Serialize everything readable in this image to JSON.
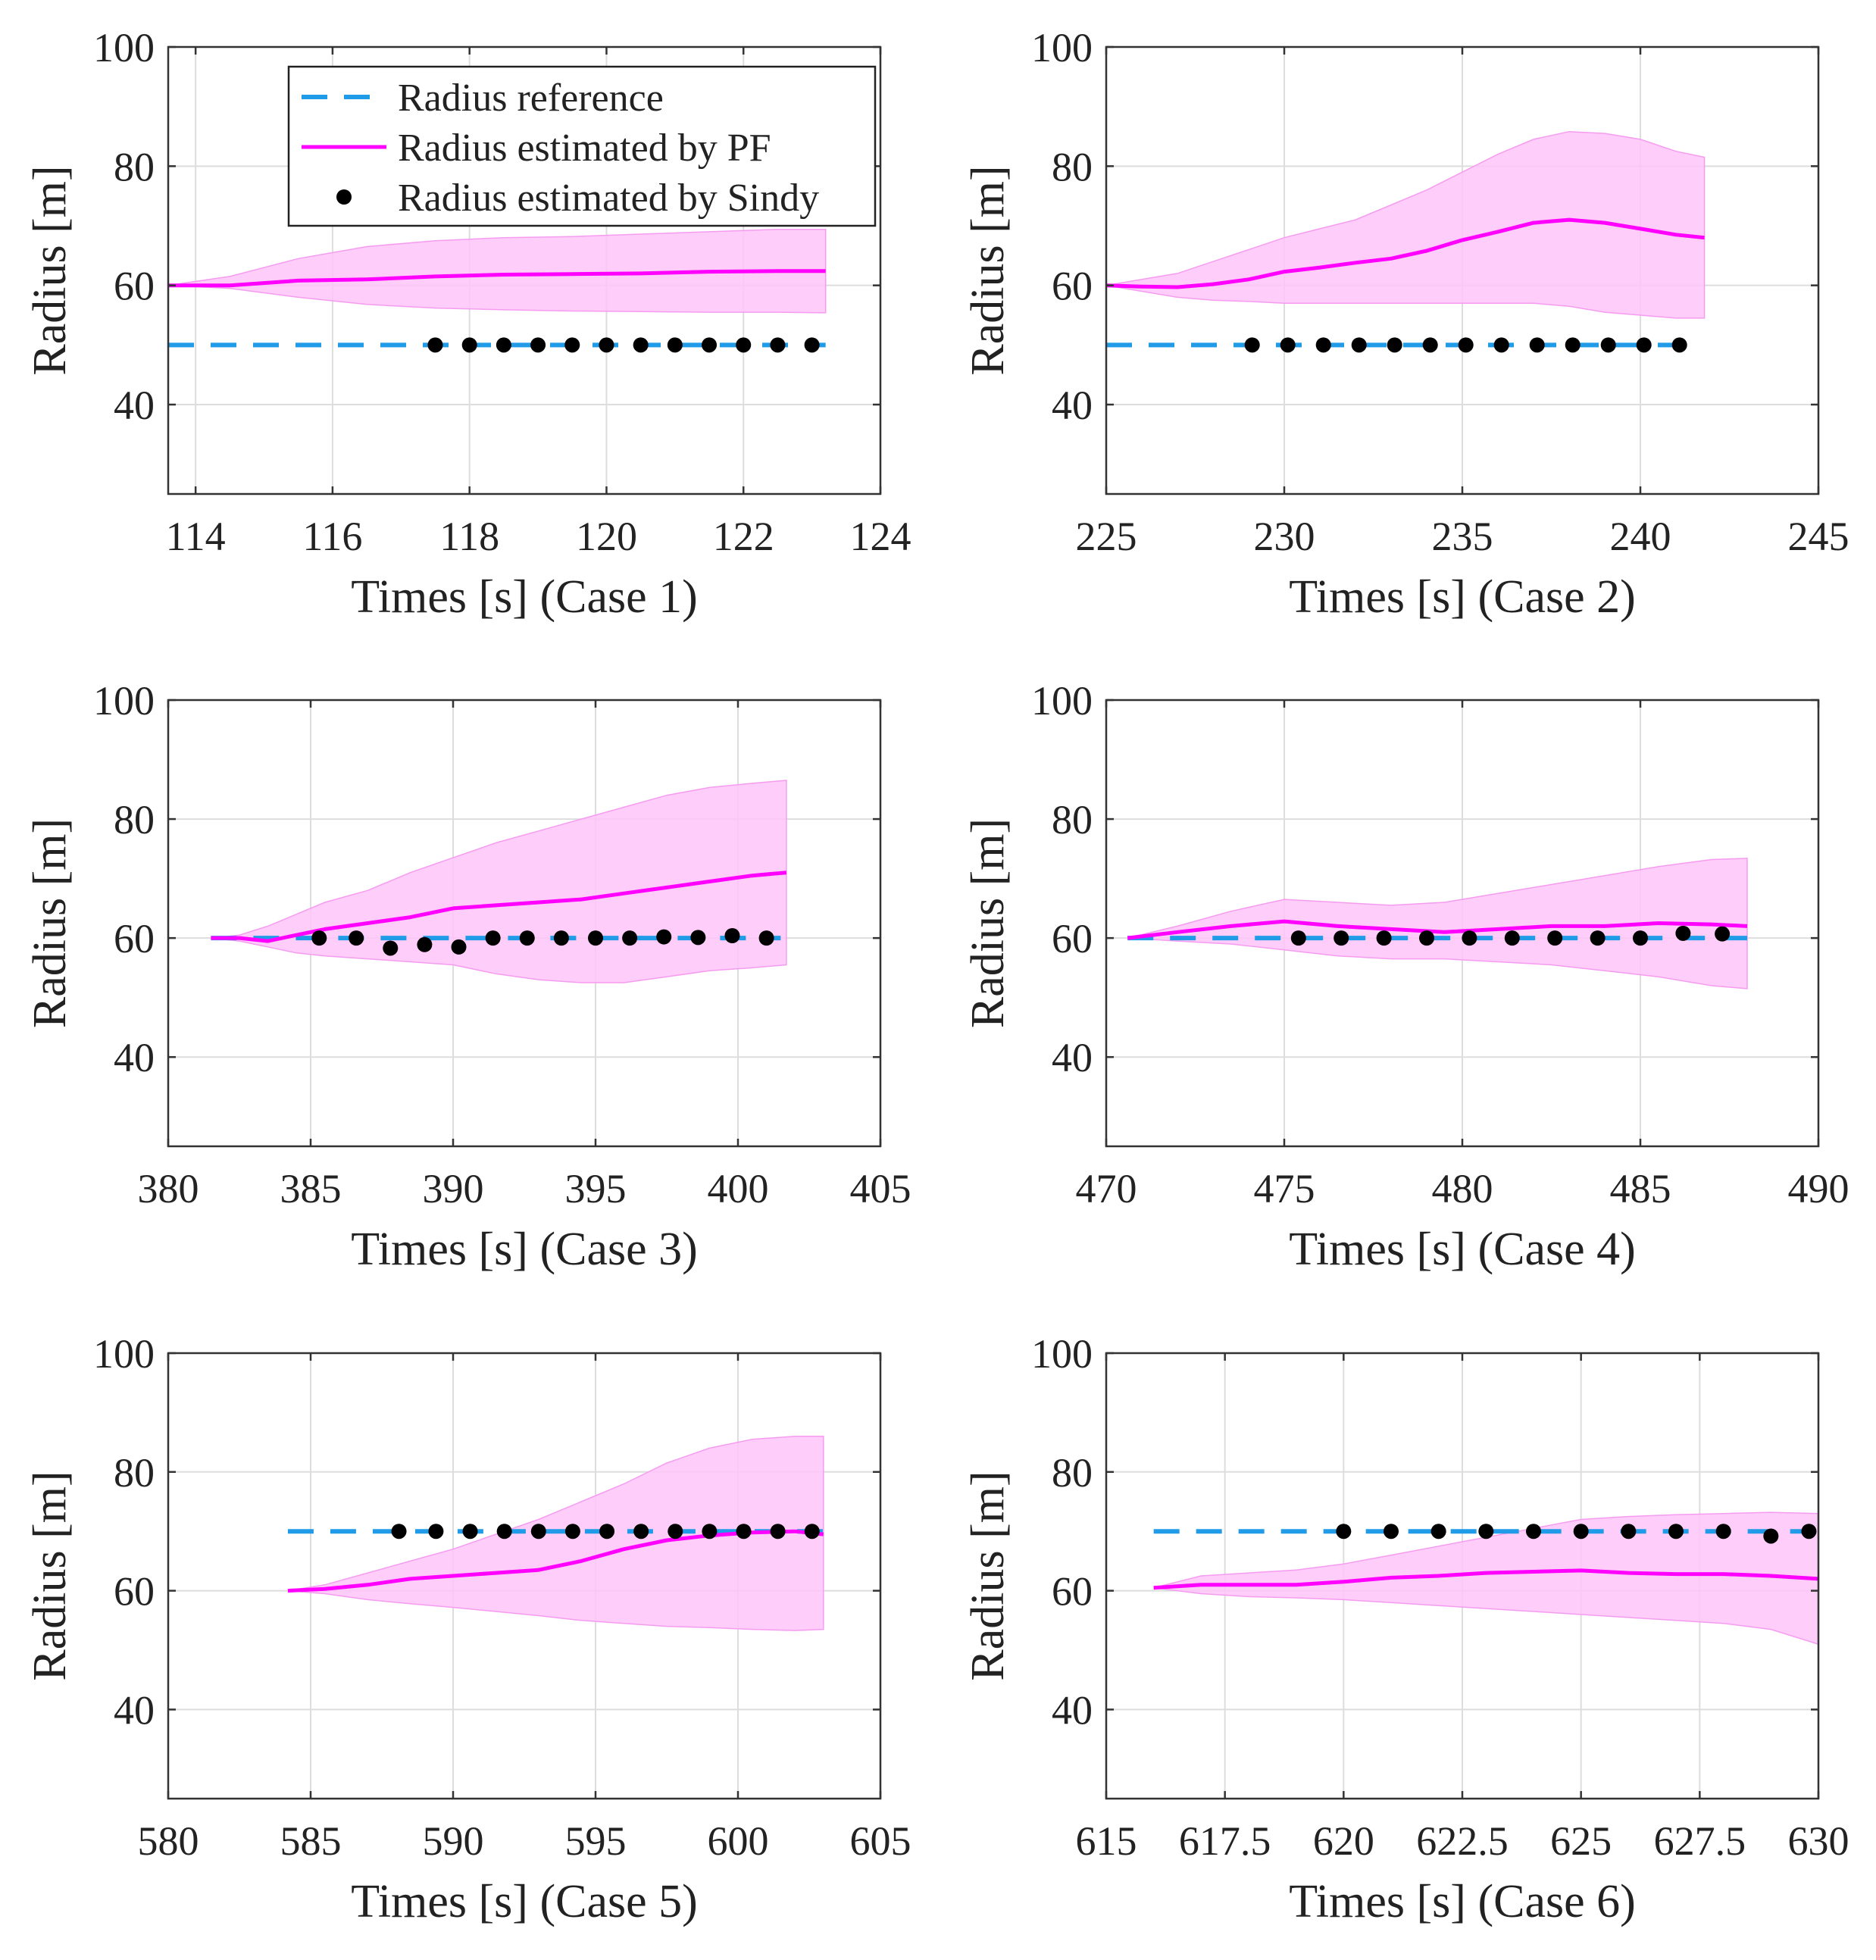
{
  "colors": {
    "reference": "#1f9be8",
    "pf": "#ff00ff",
    "pf_band": "#ffc4f8",
    "sindy": "#000000",
    "grid": "#dddddd",
    "axes": "#333333"
  },
  "legend": {
    "placement": "top-right of first panel",
    "entries": [
      {
        "label": "Radius reference",
        "style": "dashed",
        "color": "#1f9be8"
      },
      {
        "label": "Radius estimated by PF",
        "style": "solid",
        "color": "#ff00ff"
      },
      {
        "label": "Radius estimated by Sindy",
        "style": "dot",
        "color": "#000000"
      }
    ]
  },
  "chart_data": [
    {
      "type": "line",
      "title": "",
      "xlabel": "Times [s]  (Case 1)",
      "ylabel": "Radius [m]",
      "xlim": [
        113.6,
        124
      ],
      "ylim": [
        25,
        100
      ],
      "xticks": [
        114,
        116,
        118,
        120,
        122,
        124
      ],
      "xtick_labels": [
        "114",
        "116",
        "118",
        "120",
        "122",
        "124"
      ],
      "yticks": [
        40,
        60,
        80,
        100
      ],
      "ytick_labels": [
        "40",
        "60",
        "80",
        "100"
      ],
      "grid": true,
      "reference": {
        "x_start": 113.6,
        "x_end": 123.2,
        "value": 50
      },
      "pf_mean": {
        "x": [
          113.6,
          114.5,
          115.5,
          116.5,
          117.5,
          118.5,
          119.5,
          120.5,
          121.5,
          122.5,
          123.2
        ],
        "y": [
          60,
          60,
          60.8,
          61,
          61.5,
          61.8,
          61.9,
          62,
          62.3,
          62.4,
          62.4
        ]
      },
      "pf_upper": {
        "x": [
          113.6,
          114.5,
          115.5,
          116.5,
          117.5,
          118.5,
          119.5,
          120.5,
          121.5,
          122.5,
          123.2
        ],
        "y": [
          60,
          61.5,
          64.5,
          66.5,
          67.5,
          68,
          68.2,
          68.6,
          69,
          69.4,
          69.4
        ]
      },
      "pf_lower": {
        "x": [
          113.6,
          114.5,
          115.5,
          116.5,
          117.5,
          118.5,
          119.5,
          120.5,
          121.5,
          122.5,
          123.2
        ],
        "y": [
          60,
          59.5,
          58,
          56.8,
          56.2,
          55.9,
          55.7,
          55.6,
          55.5,
          55.5,
          55.4
        ]
      },
      "sindy": {
        "x": [
          117.5,
          118.0,
          118.5,
          119.0,
          119.5,
          120.0,
          120.5,
          121.0,
          121.5,
          122.0,
          122.5,
          123.0
        ],
        "y": [
          50,
          50,
          50,
          50,
          50,
          50,
          50,
          50,
          50,
          50,
          50,
          50
        ]
      }
    },
    {
      "type": "line",
      "title": "",
      "xlabel": "Times [s]  (Case 2)",
      "ylabel": "Radius [m]",
      "xlim": [
        225,
        245
      ],
      "ylim": [
        25,
        100
      ],
      "xticks": [
        225,
        230,
        235,
        240,
        245
      ],
      "xtick_labels": [
        "225",
        "230",
        "235",
        "240",
        "245"
      ],
      "yticks": [
        40,
        60,
        80,
        100
      ],
      "ytick_labels": [
        "40",
        "60",
        "80",
        "100"
      ],
      "grid": true,
      "reference": {
        "x_start": 225,
        "x_end": 241.5,
        "value": 50
      },
      "pf_mean": {
        "x": [
          225,
          226,
          227,
          228,
          229,
          230,
          231,
          232,
          233,
          234,
          235,
          236,
          237,
          238,
          239,
          240,
          241,
          241.8
        ],
        "y": [
          60,
          59.8,
          59.7,
          60.2,
          61,
          62.3,
          63,
          63.8,
          64.5,
          65.8,
          67.6,
          69,
          70.5,
          71,
          70.5,
          69.5,
          68.5,
          68
        ]
      },
      "pf_upper": {
        "x": [
          225,
          226,
          227,
          228,
          229,
          230,
          231,
          232,
          233,
          234,
          235,
          236,
          237,
          238,
          239,
          240,
          241,
          241.8
        ],
        "y": [
          60,
          61,
          62,
          64,
          66,
          68,
          69.5,
          71,
          73.5,
          76,
          79,
          82,
          84.5,
          85.8,
          85.5,
          84.5,
          82.5,
          81.5
        ]
      },
      "pf_lower": {
        "x": [
          225,
          226,
          227,
          228,
          229,
          230,
          231,
          232,
          233,
          234,
          235,
          236,
          237,
          238,
          239,
          240,
          241,
          241.8
        ],
        "y": [
          60,
          59,
          58,
          57.5,
          57.3,
          57,
          57,
          57,
          57,
          57,
          57,
          57,
          57,
          56.5,
          55.5,
          55,
          54.5,
          54.5
        ]
      },
      "sindy": {
        "x": [
          229.1,
          230.1,
          231.1,
          232.1,
          233.1,
          234.1,
          235.1,
          236.1,
          237.1,
          238.1,
          239.1,
          240.1,
          241.1
        ],
        "y": [
          50,
          50,
          50,
          50,
          50,
          50,
          50,
          50,
          50,
          50,
          50,
          50,
          50
        ]
      }
    },
    {
      "type": "line",
      "title": "",
      "xlabel": "Times [s]  (Case 3)",
      "ylabel": "Radius [m]",
      "xlim": [
        380,
        405
      ],
      "ylim": [
        25,
        100
      ],
      "xticks": [
        380,
        385,
        390,
        395,
        400,
        405
      ],
      "xtick_labels": [
        "380",
        "385",
        "390",
        "395",
        "400",
        "405"
      ],
      "yticks": [
        40,
        60,
        80,
        100
      ],
      "ytick_labels": [
        "40",
        "60",
        "80",
        "100"
      ],
      "grid": true,
      "reference": {
        "x_start": 381.5,
        "x_end": 401.5,
        "value": 60
      },
      "pf_mean": {
        "x": [
          381.5,
          382.5,
          383.5,
          384.5,
          385.5,
          387,
          388.5,
          390,
          391.5,
          393,
          394.5,
          396,
          397.5,
          399,
          400.5,
          401.7
        ],
        "y": [
          60,
          60,
          59.5,
          60.5,
          61.5,
          62.5,
          63.5,
          65,
          65.5,
          66,
          66.5,
          67.5,
          68.5,
          69.5,
          70.5,
          71
        ]
      },
      "pf_upper": {
        "x": [
          381.5,
          382.5,
          383.5,
          384.5,
          385.5,
          387,
          388.5,
          390,
          391.5,
          393,
          394.5,
          396,
          397.5,
          399,
          400.5,
          401.7
        ],
        "y": [
          60,
          60.5,
          62,
          64,
          66,
          68,
          71,
          73.5,
          76,
          78,
          80,
          82,
          84,
          85.3,
          86,
          86.5
        ]
      },
      "pf_lower": {
        "x": [
          381.5,
          382.5,
          383.5,
          384.5,
          385.5,
          387,
          388.5,
          390,
          391.5,
          393,
          394.5,
          396,
          397.5,
          399,
          400.5,
          401.7
        ],
        "y": [
          60,
          59.5,
          58.5,
          57.5,
          57,
          56.5,
          56,
          55.5,
          54,
          53,
          52.5,
          52.5,
          53.5,
          54.5,
          55,
          55.5
        ]
      },
      "sindy": {
        "x": [
          385.3,
          386.6,
          387.8,
          389.0,
          390.2,
          391.4,
          392.6,
          393.8,
          395.0,
          396.2,
          397.4,
          398.6,
          399.8,
          401.0
        ],
        "y": [
          60,
          60,
          58.3,
          58.9,
          58.5,
          60,
          60,
          60,
          60,
          60,
          60.2,
          60.1,
          60.4,
          60
        ]
      }
    },
    {
      "type": "line",
      "title": "",
      "xlabel": "Times [s]  (Case 4)",
      "ylabel": "Radius [m]",
      "xlim": [
        470,
        490
      ],
      "ylim": [
        25,
        100
      ],
      "xticks": [
        470,
        475,
        480,
        485,
        490
      ],
      "xtick_labels": [
        "470",
        "475",
        "480",
        "485",
        "490"
      ],
      "yticks": [
        40,
        60,
        80,
        100
      ],
      "ytick_labels": [
        "40",
        "60",
        "80",
        "100"
      ],
      "grid": true,
      "reference": {
        "x_start": 470.6,
        "x_end": 488,
        "value": 60
      },
      "pf_mean": {
        "x": [
          470.6,
          472,
          473.5,
          475,
          476.5,
          478,
          479.5,
          481,
          482.5,
          484,
          485.5,
          487,
          488
        ],
        "y": [
          60,
          61,
          62,
          62.8,
          62,
          61.5,
          61,
          61.5,
          62,
          62,
          62.5,
          62.3,
          62
        ]
      },
      "pf_upper": {
        "x": [
          470.6,
          472,
          473.5,
          475,
          476.5,
          478,
          479.5,
          481,
          482.5,
          484,
          485.5,
          487,
          488
        ],
        "y": [
          60,
          62,
          64.5,
          66.5,
          66,
          65.5,
          66,
          67.5,
          69,
          70.5,
          72,
          73.2,
          73.4
        ]
      },
      "pf_lower": {
        "x": [
          470.6,
          472,
          473.5,
          475,
          476.5,
          478,
          479.5,
          481,
          482.5,
          484,
          485.5,
          487,
          488
        ],
        "y": [
          60,
          59.5,
          59,
          58,
          57,
          56.5,
          56.5,
          56,
          55.5,
          54.5,
          53.5,
          52,
          51.5
        ]
      },
      "sindy": {
        "x": [
          475.4,
          476.6,
          477.8,
          479.0,
          480.2,
          481.4,
          482.6,
          483.8,
          485.0,
          486.2,
          487.3
        ],
        "y": [
          60,
          60,
          60,
          60,
          60,
          60,
          60,
          60,
          60,
          60.8,
          60.7
        ]
      }
    },
    {
      "type": "line",
      "title": "",
      "xlabel": "Times [s]  (Case 5)",
      "ylabel": "Radius [m]",
      "xlim": [
        580,
        605
      ],
      "ylim": [
        25,
        100
      ],
      "xticks": [
        580,
        585,
        590,
        595,
        600,
        605
      ],
      "xtick_labels": [
        "580",
        "585",
        "590",
        "595",
        "600",
        "605"
      ],
      "yticks": [
        40,
        60,
        80,
        100
      ],
      "ytick_labels": [
        "40",
        "60",
        "80",
        "100"
      ],
      "grid": true,
      "reference": {
        "x_start": 584.2,
        "x_end": 603,
        "value": 70
      },
      "pf_mean": {
        "x": [
          584.2,
          585.5,
          587,
          588.5,
          590,
          591.5,
          593,
          594.5,
          596,
          597.5,
          599,
          600.5,
          602,
          603
        ],
        "y": [
          60,
          60.3,
          61,
          62,
          62.5,
          63,
          63.5,
          65,
          67,
          68.5,
          69.3,
          69.8,
          70,
          69.5
        ]
      },
      "pf_upper": {
        "x": [
          584.2,
          585.5,
          587,
          588.5,
          590,
          591.5,
          593,
          594.5,
          596,
          597.5,
          599,
          600.5,
          602,
          603
        ],
        "y": [
          60,
          61,
          63,
          65,
          67,
          69.5,
          72,
          75,
          78,
          81.5,
          84,
          85.5,
          86,
          86
        ]
      },
      "pf_lower": {
        "x": [
          584.2,
          585.5,
          587,
          588.5,
          590,
          591.5,
          593,
          594.5,
          596,
          597.5,
          599,
          600.5,
          602,
          603
        ],
        "y": [
          60,
          59.5,
          58.5,
          57.8,
          57.2,
          56.5,
          55.8,
          55,
          54.5,
          54,
          53.8,
          53.5,
          53.3,
          53.5
        ]
      },
      "sindy": {
        "x": [
          588.1,
          589.4,
          590.6,
          591.8,
          593.0,
          594.2,
          595.4,
          596.6,
          597.8,
          599.0,
          600.2,
          601.4,
          602.6
        ],
        "y": [
          70,
          70,
          70,
          70,
          70,
          70,
          70,
          70,
          70,
          70,
          70,
          70,
          70
        ]
      }
    },
    {
      "type": "line",
      "title": "",
      "xlabel": "Times [s]  (Case 6)",
      "ylabel": "Radius [m]",
      "xlim": [
        615,
        630
      ],
      "ylim": [
        25,
        100
      ],
      "xticks": [
        615,
        617.5,
        620,
        622.5,
        625,
        627.5,
        630
      ],
      "xtick_labels": [
        "615",
        "617.5",
        "620",
        "622.5",
        "625",
        "627.5",
        "630"
      ],
      "yticks": [
        40,
        60,
        80,
        100
      ],
      "ytick_labels": [
        "40",
        "60",
        "80",
        "100"
      ],
      "grid": true,
      "reference": {
        "x_start": 616,
        "x_end": 630,
        "value": 70
      },
      "pf_mean": {
        "x": [
          616,
          617,
          618,
          619,
          620,
          621,
          622,
          623,
          624,
          625,
          626,
          627,
          628,
          629,
          630
        ],
        "y": [
          60.5,
          61,
          61,
          61,
          61.5,
          62.2,
          62.5,
          63,
          63.2,
          63.4,
          63,
          62.8,
          62.8,
          62.5,
          62
        ]
      },
      "pf_upper": {
        "x": [
          616,
          617,
          618,
          619,
          620,
          621,
          622,
          623,
          624,
          625,
          626,
          627,
          628,
          629,
          630
        ],
        "y": [
          60.5,
          62.5,
          63,
          63.5,
          64.5,
          66,
          67.5,
          69,
          70.5,
          72,
          72.5,
          72.8,
          73,
          73.2,
          73
        ]
      },
      "pf_lower": {
        "x": [
          616,
          617,
          618,
          619,
          620,
          621,
          622,
          623,
          624,
          625,
          626,
          627,
          628,
          629,
          630
        ],
        "y": [
          60.5,
          59.5,
          59,
          58.8,
          58.5,
          58,
          57.5,
          57,
          56.5,
          56,
          55.5,
          55,
          54.5,
          53.5,
          51
        ]
      },
      "sindy": {
        "x": [
          620.0,
          621.0,
          622.0,
          623.0,
          624.0,
          625.0,
          626.0,
          627.0,
          628.0,
          629.0,
          629.8
        ],
        "y": [
          70,
          70,
          70,
          70,
          70,
          70,
          70,
          70,
          70,
          69.2,
          70
        ]
      }
    }
  ]
}
